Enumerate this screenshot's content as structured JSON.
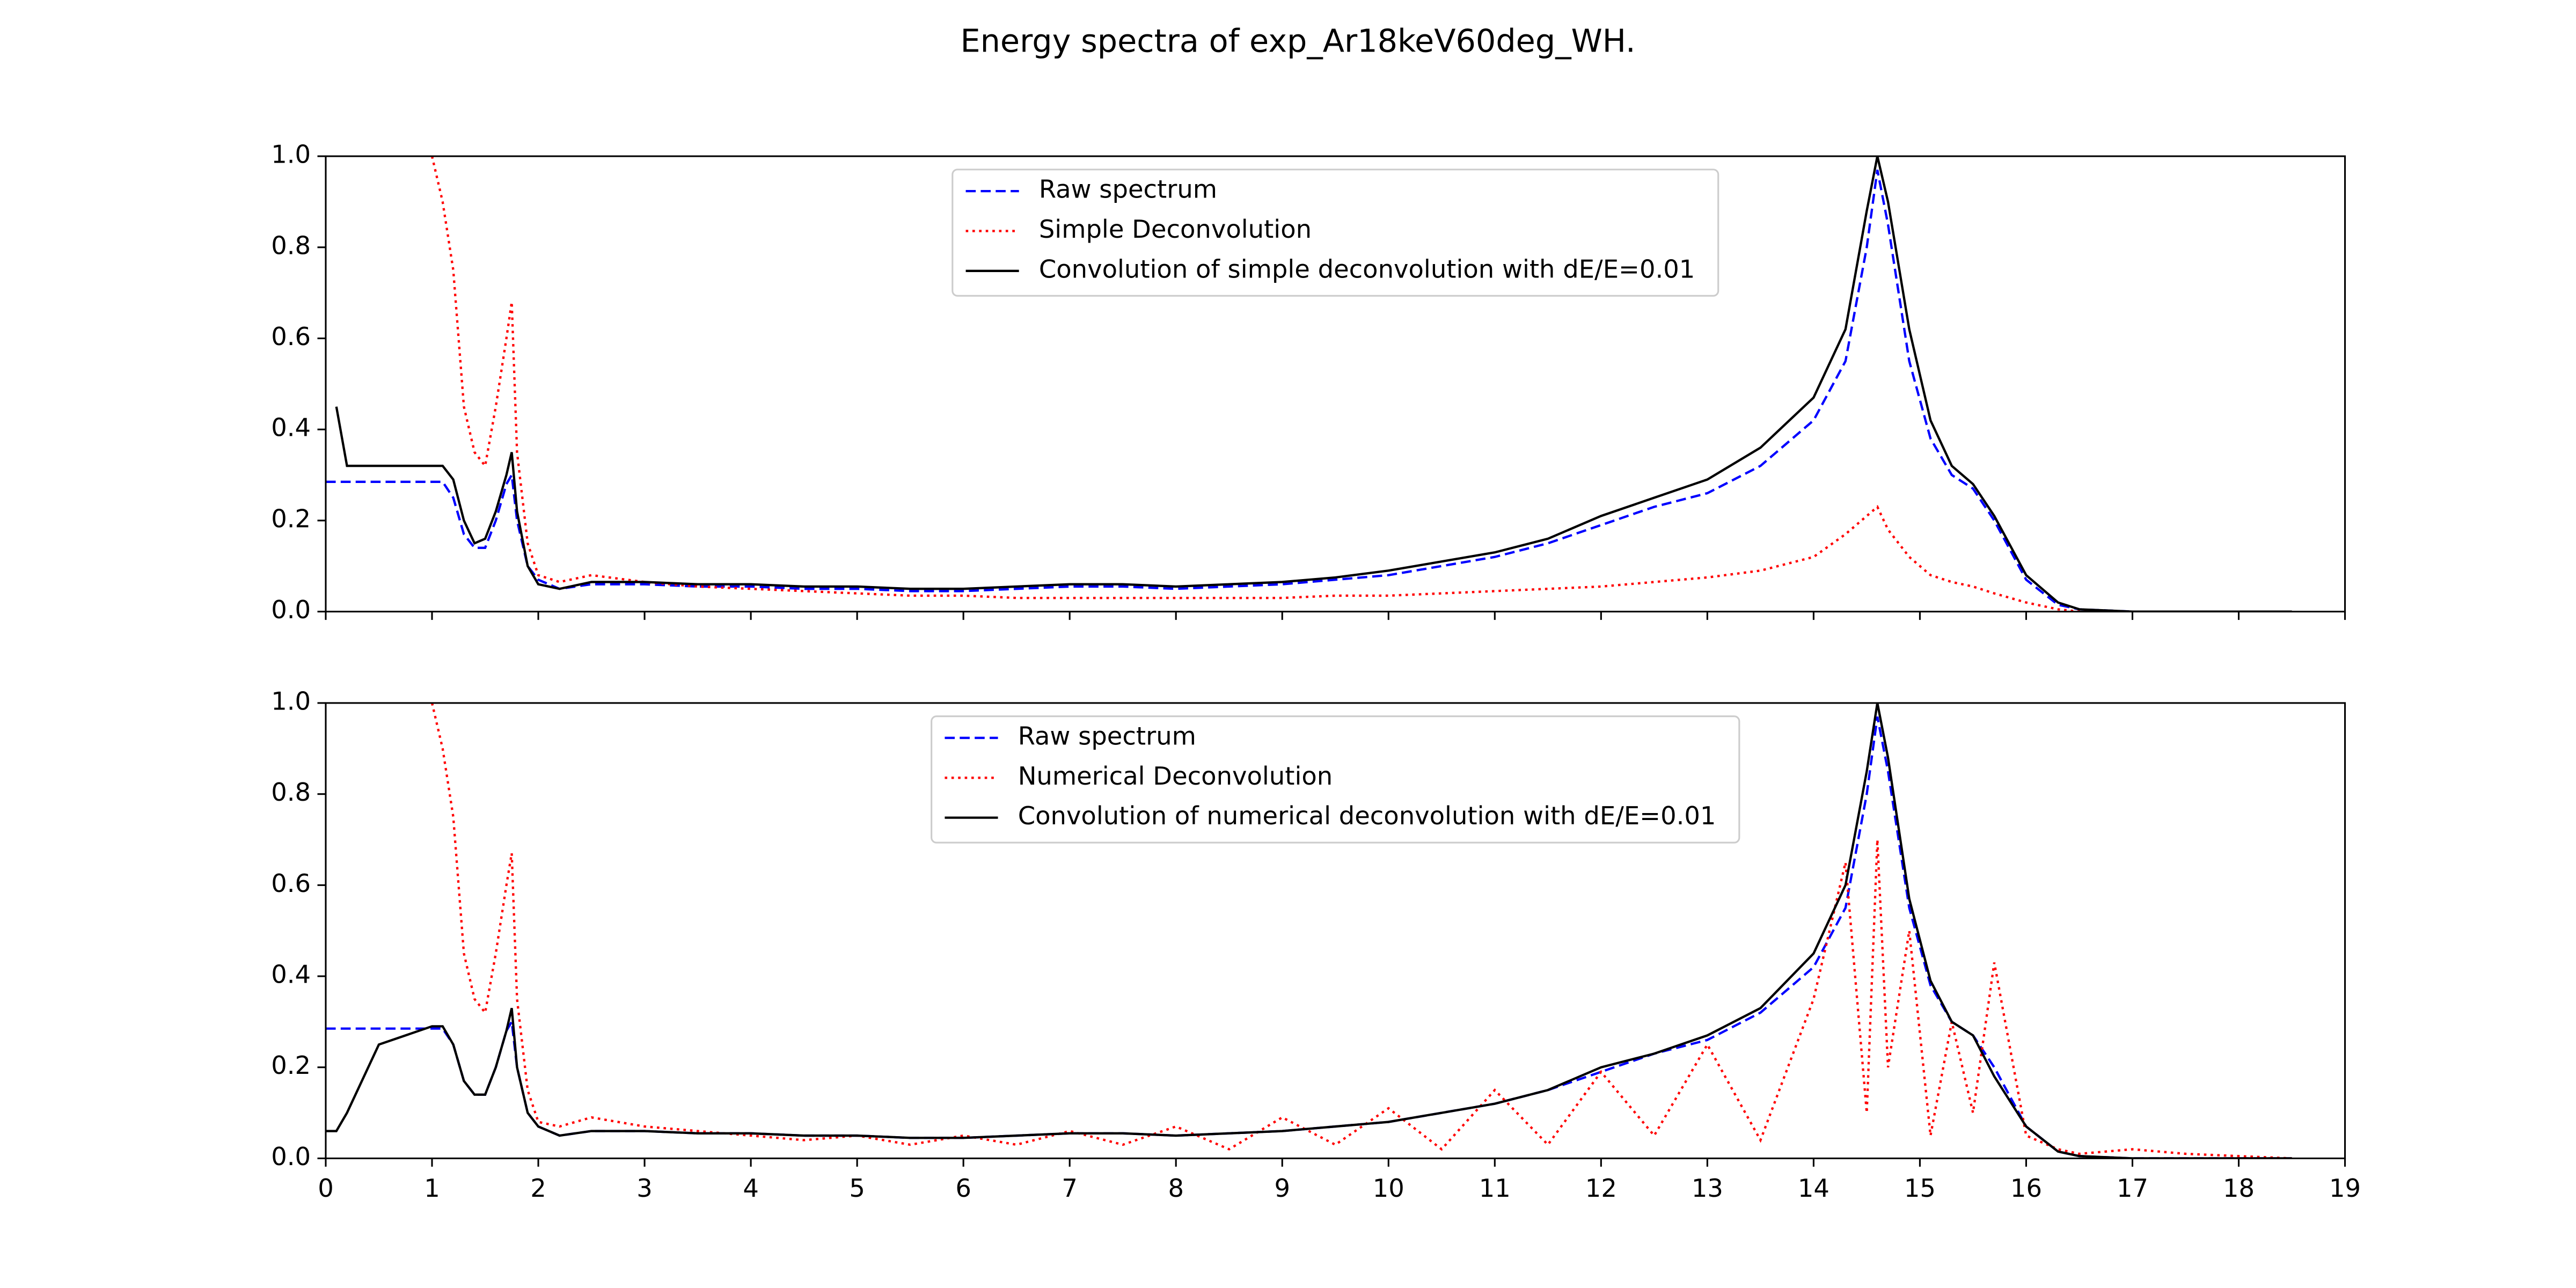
{
  "title": "Energy spectra of exp_Ar18keV60deg_WH.",
  "chart_data": [
    {
      "type": "line",
      "legend": "upper center",
      "x": [
        0,
        0.1,
        0.2,
        0.5,
        1.0,
        1.1,
        1.2,
        1.3,
        1.4,
        1.5,
        1.6,
        1.7,
        1.75,
        1.8,
        1.9,
        2.0,
        2.2,
        2.5,
        3,
        3.5,
        4,
        4.5,
        5,
        5.5,
        6,
        6.5,
        7,
        7.5,
        8,
        8.5,
        9,
        9.5,
        10,
        10.5,
        11,
        11.5,
        12,
        12.5,
        13,
        13.5,
        14,
        14.3,
        14.5,
        14.6,
        14.7,
        14.9,
        15.1,
        15.3,
        15.5,
        15.7,
        16,
        16.3,
        16.5,
        17,
        17.5,
        18,
        18.5
      ],
      "xlim": [
        0,
        19
      ],
      "xticks": [
        0,
        1,
        2,
        3,
        4,
        5,
        6,
        7,
        8,
        9,
        10,
        11,
        12,
        13,
        14,
        15,
        16,
        17,
        18,
        19
      ],
      "ylim": [
        0,
        1
      ],
      "yticks": [
        {
          "value": 0,
          "label": "0.0"
        },
        {
          "value": 0.2,
          "label": "0.2"
        },
        {
          "value": 0.4,
          "label": "0.4"
        },
        {
          "value": 0.6,
          "label": "0.6"
        },
        {
          "value": 0.8,
          "label": "0.8"
        },
        {
          "value": 1,
          "label": "1.0"
        }
      ],
      "series": [
        {
          "name": "Raw spectrum",
          "color": "#0000ff",
          "linestyle": "dashed",
          "values": [
            0.285,
            0.285,
            0.285,
            0.285,
            0.285,
            0.285,
            0.25,
            0.17,
            0.14,
            0.14,
            0.2,
            0.28,
            0.3,
            0.2,
            0.1,
            0.07,
            0.05,
            0.06,
            0.06,
            0.055,
            0.055,
            0.05,
            0.05,
            0.045,
            0.045,
            0.05,
            0.055,
            0.055,
            0.05,
            0.055,
            0.06,
            0.07,
            0.08,
            0.1,
            0.12,
            0.15,
            0.19,
            0.23,
            0.26,
            0.32,
            0.42,
            0.55,
            0.8,
            0.97,
            0.85,
            0.55,
            0.38,
            0.3,
            0.27,
            0.2,
            0.07,
            0.015,
            0.005,
            0,
            0,
            0,
            0
          ]
        },
        {
          "name": "Simple Deconvolution",
          "color": "#ff0000",
          "linestyle": "dotted",
          "values": [
            null,
            null,
            null,
            null,
            1.0,
            0.9,
            0.75,
            0.45,
            0.35,
            0.32,
            0.45,
            0.6,
            0.68,
            0.35,
            0.15,
            0.08,
            0.065,
            0.08,
            0.065,
            0.055,
            0.05,
            0.045,
            0.04,
            0.035,
            0.035,
            0.03,
            0.03,
            0.03,
            0.03,
            0.03,
            0.03,
            0.035,
            0.035,
            0.04,
            0.045,
            0.05,
            0.055,
            0.065,
            0.075,
            0.09,
            0.12,
            0.17,
            0.21,
            0.23,
            0.18,
            0.12,
            0.08,
            0.065,
            0.055,
            0.04,
            0.02,
            0.005,
            0,
            0,
            0,
            0,
            0
          ]
        },
        {
          "name": "Convolution of simple deconvolution with dE/E=0.01",
          "color": "#000000",
          "linestyle": "solid",
          "values": [
            null,
            0.45,
            0.32,
            0.32,
            0.32,
            0.32,
            0.29,
            0.2,
            0.15,
            0.16,
            0.22,
            0.3,
            0.35,
            0.22,
            0.1,
            0.06,
            0.05,
            0.065,
            0.065,
            0.06,
            0.06,
            0.055,
            0.055,
            0.05,
            0.05,
            0.055,
            0.06,
            0.06,
            0.055,
            0.06,
            0.065,
            0.075,
            0.09,
            0.11,
            0.13,
            0.16,
            0.21,
            0.25,
            0.29,
            0.36,
            0.47,
            0.62,
            0.88,
            1.0,
            0.9,
            0.62,
            0.42,
            0.32,
            0.28,
            0.21,
            0.08,
            0.02,
            0.005,
            0,
            0,
            0,
            0
          ]
        }
      ]
    },
    {
      "type": "line",
      "legend": "upper center",
      "x": [
        0,
        0.1,
        0.2,
        0.5,
        1.0,
        1.1,
        1.2,
        1.3,
        1.4,
        1.5,
        1.6,
        1.7,
        1.75,
        1.8,
        1.9,
        2.0,
        2.2,
        2.5,
        3,
        3.5,
        4,
        4.5,
        5,
        5.5,
        6,
        6.5,
        7,
        7.5,
        8,
        8.5,
        9,
        9.5,
        10,
        10.5,
        11,
        11.5,
        12,
        12.5,
        13,
        13.5,
        14,
        14.3,
        14.5,
        14.6,
        14.7,
        14.9,
        15.1,
        15.3,
        15.5,
        15.7,
        16,
        16.3,
        16.5,
        17,
        17.5,
        18,
        18.5
      ],
      "xlim": [
        0,
        19
      ],
      "xticks": [
        0,
        1,
        2,
        3,
        4,
        5,
        6,
        7,
        8,
        9,
        10,
        11,
        12,
        13,
        14,
        15,
        16,
        17,
        18,
        19
      ],
      "ylim": [
        0,
        1
      ],
      "yticks": [
        {
          "value": 0,
          "label": "0.0"
        },
        {
          "value": 0.2,
          "label": "0.2"
        },
        {
          "value": 0.4,
          "label": "0.4"
        },
        {
          "value": 0.6,
          "label": "0.6"
        },
        {
          "value": 0.8,
          "label": "0.8"
        },
        {
          "value": 1,
          "label": "1.0"
        }
      ],
      "series": [
        {
          "name": "Raw spectrum",
          "color": "#0000ff",
          "linestyle": "dashed",
          "values": [
            0.285,
            0.285,
            0.285,
            0.285,
            0.285,
            0.285,
            0.25,
            0.17,
            0.14,
            0.14,
            0.2,
            0.28,
            0.3,
            0.2,
            0.1,
            0.07,
            0.05,
            0.06,
            0.06,
            0.055,
            0.055,
            0.05,
            0.05,
            0.045,
            0.045,
            0.05,
            0.055,
            0.055,
            0.05,
            0.055,
            0.06,
            0.07,
            0.08,
            0.1,
            0.12,
            0.15,
            0.19,
            0.23,
            0.26,
            0.32,
            0.42,
            0.55,
            0.8,
            0.97,
            0.85,
            0.55,
            0.38,
            0.3,
            0.27,
            0.2,
            0.07,
            0.015,
            0.005,
            0,
            0,
            0,
            0
          ]
        },
        {
          "name": "Numerical Deconvolution",
          "color": "#ff0000",
          "linestyle": "dotted",
          "values": [
            null,
            null,
            null,
            null,
            1.0,
            0.9,
            0.75,
            0.45,
            0.35,
            0.32,
            0.45,
            0.6,
            0.67,
            0.35,
            0.15,
            0.08,
            0.07,
            0.09,
            0.07,
            0.06,
            0.05,
            0.04,
            0.05,
            0.03,
            0.05,
            0.03,
            0.06,
            0.03,
            0.07,
            0.02,
            0.09,
            0.03,
            0.11,
            0.02,
            0.15,
            0.03,
            0.19,
            0.05,
            0.25,
            0.04,
            0.35,
            0.65,
            0.1,
            0.7,
            0.2,
            0.5,
            0.05,
            0.3,
            0.1,
            0.43,
            0.05,
            0.02,
            0.01,
            0.02,
            0.01,
            0.005,
            0
          ]
        },
        {
          "name": "Convolution of numerical deconvolution with dE/E=0.01",
          "color": "#000000",
          "linestyle": "solid",
          "values": [
            0.06,
            0.06,
            0.1,
            0.25,
            0.29,
            0.29,
            0.25,
            0.17,
            0.14,
            0.14,
            0.2,
            0.28,
            0.33,
            0.2,
            0.1,
            0.07,
            0.05,
            0.06,
            0.06,
            0.055,
            0.055,
            0.05,
            0.05,
            0.045,
            0.045,
            0.05,
            0.055,
            0.055,
            0.05,
            0.055,
            0.06,
            0.07,
            0.08,
            0.1,
            0.12,
            0.15,
            0.2,
            0.23,
            0.27,
            0.33,
            0.45,
            0.6,
            0.85,
            1.0,
            0.88,
            0.57,
            0.39,
            0.3,
            0.27,
            0.18,
            0.07,
            0.015,
            0.005,
            0,
            0,
            0,
            0
          ]
        }
      ]
    }
  ]
}
